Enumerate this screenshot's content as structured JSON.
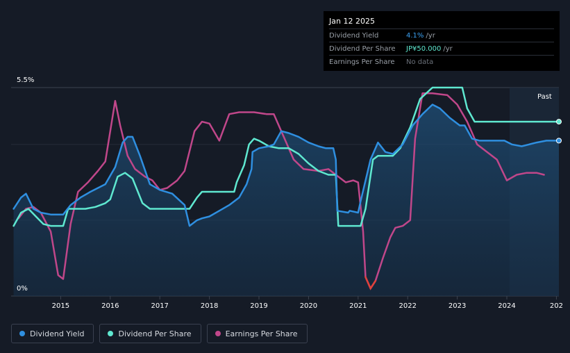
{
  "tooltip": {
    "date": "Jan 12 2025",
    "rows": [
      {
        "label": "Dividend Yield",
        "value": "4.1%",
        "unit": "/yr",
        "color": "#3ba0f0"
      },
      {
        "label": "Dividend Per Share",
        "value": "JP¥50.000",
        "unit": "/yr",
        "color": "#5fe8d0"
      },
      {
        "label": "Earnings Per Share",
        "value": "No data",
        "unit": "",
        "color": "#6b717a"
      }
    ]
  },
  "legend": [
    {
      "label": "Dividend Yield",
      "color": "#2f8fe0"
    },
    {
      "label": "Dividend Per Share",
      "color": "#5fe8d0"
    },
    {
      "label": "Earnings Per Share",
      "color": "#c0478a"
    }
  ],
  "chart_data": {
    "type": "line",
    "title": "",
    "xlabel": "",
    "ylabel": "",
    "x_ticks": [
      "2015",
      "2016",
      "2017",
      "2018",
      "2019",
      "2020",
      "2021",
      "2022",
      "2023",
      "2024",
      "202"
    ],
    "y_ticks": [
      "5.5%",
      "0%"
    ],
    "ylim": [
      0,
      5.5
    ],
    "xlim": [
      2014.0,
      2025.05
    ],
    "past_label": "Past",
    "series": [
      {
        "name": "Dividend Yield",
        "color": "#2f8fe0",
        "points": [
          [
            2014.05,
            2.3
          ],
          [
            2014.2,
            2.6
          ],
          [
            2014.3,
            2.7
          ],
          [
            2014.45,
            2.3
          ],
          [
            2014.6,
            2.2
          ],
          [
            2014.8,
            2.15
          ],
          [
            2015.05,
            2.15
          ],
          [
            2015.2,
            2.4
          ],
          [
            2015.4,
            2.6
          ],
          [
            2015.6,
            2.75
          ],
          [
            2015.9,
            2.95
          ],
          [
            2016.1,
            3.4
          ],
          [
            2016.25,
            4.05
          ],
          [
            2016.35,
            4.2
          ],
          [
            2016.45,
            4.2
          ],
          [
            2016.6,
            3.7
          ],
          [
            2016.8,
            2.95
          ],
          [
            2017.0,
            2.8
          ],
          [
            2017.25,
            2.7
          ],
          [
            2017.5,
            2.4
          ],
          [
            2017.6,
            1.85
          ],
          [
            2017.75,
            2.0
          ],
          [
            2017.85,
            2.05
          ],
          [
            2018.0,
            2.1
          ],
          [
            2018.2,
            2.25
          ],
          [
            2018.4,
            2.4
          ],
          [
            2018.6,
            2.6
          ],
          [
            2018.75,
            2.95
          ],
          [
            2018.85,
            3.35
          ],
          [
            2018.87,
            3.8
          ],
          [
            2019.0,
            3.9
          ],
          [
            2019.2,
            3.95
          ],
          [
            2019.3,
            4.0
          ],
          [
            2019.45,
            4.35
          ],
          [
            2019.6,
            4.3
          ],
          [
            2019.8,
            4.2
          ],
          [
            2020.0,
            4.05
          ],
          [
            2020.2,
            3.95
          ],
          [
            2020.35,
            3.9
          ],
          [
            2020.5,
            3.9
          ],
          [
            2020.55,
            3.6
          ],
          [
            2020.58,
            2.25
          ],
          [
            2020.8,
            2.2
          ],
          [
            2020.83,
            2.25
          ],
          [
            2021.0,
            2.2
          ],
          [
            2021.05,
            2.5
          ],
          [
            2021.25,
            3.6
          ],
          [
            2021.4,
            4.05
          ],
          [
            2021.55,
            3.8
          ],
          [
            2021.7,
            3.75
          ],
          [
            2021.9,
            4.0
          ],
          [
            2022.1,
            4.5
          ],
          [
            2022.3,
            4.8
          ],
          [
            2022.5,
            5.05
          ],
          [
            2022.65,
            4.95
          ],
          [
            2022.85,
            4.7
          ],
          [
            2023.05,
            4.5
          ],
          [
            2023.15,
            4.5
          ],
          [
            2023.3,
            4.15
          ],
          [
            2023.45,
            4.1
          ],
          [
            2023.7,
            4.1
          ],
          [
            2023.95,
            4.1
          ],
          [
            2024.1,
            4.0
          ],
          [
            2024.3,
            3.95
          ],
          [
            2024.45,
            4.0
          ],
          [
            2024.6,
            4.05
          ],
          [
            2024.8,
            4.1
          ],
          [
            2025.05,
            4.1
          ]
        ]
      },
      {
        "name": "Dividend Per Share",
        "color": "#5fe8d0",
        "points": [
          [
            2014.05,
            1.85
          ],
          [
            2014.2,
            2.2
          ],
          [
            2014.35,
            2.3
          ],
          [
            2014.5,
            2.1
          ],
          [
            2014.65,
            1.9
          ],
          [
            2014.8,
            1.85
          ],
          [
            2015.05,
            1.85
          ],
          [
            2015.15,
            2.3
          ],
          [
            2015.3,
            2.3
          ],
          [
            2015.5,
            2.3
          ],
          [
            2015.7,
            2.35
          ],
          [
            2015.9,
            2.45
          ],
          [
            2016.0,
            2.55
          ],
          [
            2016.15,
            3.15
          ],
          [
            2016.3,
            3.25
          ],
          [
            2016.45,
            3.1
          ],
          [
            2016.65,
            2.45
          ],
          [
            2016.8,
            2.3
          ],
          [
            2016.9,
            2.3
          ],
          [
            2017.2,
            2.3
          ],
          [
            2017.6,
            2.3
          ],
          [
            2017.75,
            2.6
          ],
          [
            2017.85,
            2.75
          ],
          [
            2018.0,
            2.75
          ],
          [
            2018.2,
            2.75
          ],
          [
            2018.5,
            2.75
          ],
          [
            2018.55,
            3.0
          ],
          [
            2018.7,
            3.45
          ],
          [
            2018.8,
            4.0
          ],
          [
            2018.9,
            4.15
          ],
          [
            2019.0,
            4.1
          ],
          [
            2019.2,
            3.95
          ],
          [
            2019.4,
            3.9
          ],
          [
            2019.6,
            3.9
          ],
          [
            2019.8,
            3.75
          ],
          [
            2020.0,
            3.5
          ],
          [
            2020.2,
            3.3
          ],
          [
            2020.4,
            3.2
          ],
          [
            2020.55,
            3.2
          ],
          [
            2020.6,
            1.85
          ],
          [
            2020.8,
            1.85
          ],
          [
            2021.05,
            1.85
          ],
          [
            2021.15,
            2.3
          ],
          [
            2021.3,
            3.6
          ],
          [
            2021.4,
            3.7
          ],
          [
            2021.7,
            3.7
          ],
          [
            2021.85,
            3.9
          ],
          [
            2022.05,
            4.45
          ],
          [
            2022.25,
            5.2
          ],
          [
            2022.5,
            5.5
          ],
          [
            2022.75,
            5.5
          ],
          [
            2023.1,
            5.5
          ],
          [
            2023.2,
            4.95
          ],
          [
            2023.35,
            4.6
          ],
          [
            2023.5,
            4.6
          ],
          [
            2024.0,
            4.6
          ],
          [
            2024.5,
            4.6
          ],
          [
            2025.05,
            4.6
          ]
        ]
      },
      {
        "name": "Earnings Per Share",
        "color": "#c0478a",
        "points": [
          [
            2014.15,
            2.05
          ],
          [
            2014.3,
            2.3
          ],
          [
            2014.45,
            2.35
          ],
          [
            2014.6,
            2.2
          ],
          [
            2014.8,
            1.7
          ],
          [
            2014.95,
            0.55
          ],
          [
            2015.05,
            0.45
          ],
          [
            2015.2,
            1.9
          ],
          [
            2015.35,
            2.75
          ],
          [
            2015.55,
            3.0
          ],
          [
            2015.75,
            3.3
          ],
          [
            2015.9,
            3.55
          ],
          [
            2016.1,
            5.15
          ],
          [
            2016.2,
            4.5
          ],
          [
            2016.35,
            3.7
          ],
          [
            2016.5,
            3.35
          ],
          [
            2016.7,
            3.15
          ],
          [
            2016.85,
            3.05
          ],
          [
            2017.0,
            2.8
          ],
          [
            2017.15,
            2.85
          ],
          [
            2017.35,
            3.05
          ],
          [
            2017.5,
            3.3
          ],
          [
            2017.7,
            4.35
          ],
          [
            2017.85,
            4.6
          ],
          [
            2018.0,
            4.55
          ],
          [
            2018.2,
            4.1
          ],
          [
            2018.4,
            4.8
          ],
          [
            2018.6,
            4.85
          ],
          [
            2018.9,
            4.85
          ],
          [
            2019.15,
            4.8
          ],
          [
            2019.3,
            4.8
          ],
          [
            2019.5,
            4.2
          ],
          [
            2019.7,
            3.6
          ],
          [
            2019.9,
            3.35
          ],
          [
            2020.2,
            3.3
          ],
          [
            2020.4,
            3.35
          ],
          [
            2020.55,
            3.2
          ],
          [
            2020.75,
            3.0
          ],
          [
            2020.9,
            3.05
          ],
          [
            2021.0,
            3.0
          ],
          [
            2021.1,
            1.7
          ],
          [
            2021.15,
            0.5
          ],
          [
            2021.25,
            0.2
          ],
          [
            2021.35,
            0.4
          ],
          [
            2021.5,
            1.0
          ],
          [
            2021.65,
            1.55
          ],
          [
            2021.75,
            1.8
          ],
          [
            2021.9,
            1.85
          ],
          [
            2022.05,
            2.0
          ],
          [
            2022.15,
            4.15
          ],
          [
            2022.3,
            5.35
          ],
          [
            2022.5,
            5.35
          ],
          [
            2022.8,
            5.3
          ],
          [
            2023.0,
            5.05
          ],
          [
            2023.2,
            4.6
          ],
          [
            2023.4,
            4.0
          ],
          [
            2023.6,
            3.8
          ],
          [
            2023.8,
            3.6
          ],
          [
            2024.0,
            3.05
          ],
          [
            2024.2,
            3.2
          ],
          [
            2024.4,
            3.25
          ],
          [
            2024.6,
            3.25
          ],
          [
            2024.75,
            3.2
          ]
        ]
      }
    ]
  }
}
